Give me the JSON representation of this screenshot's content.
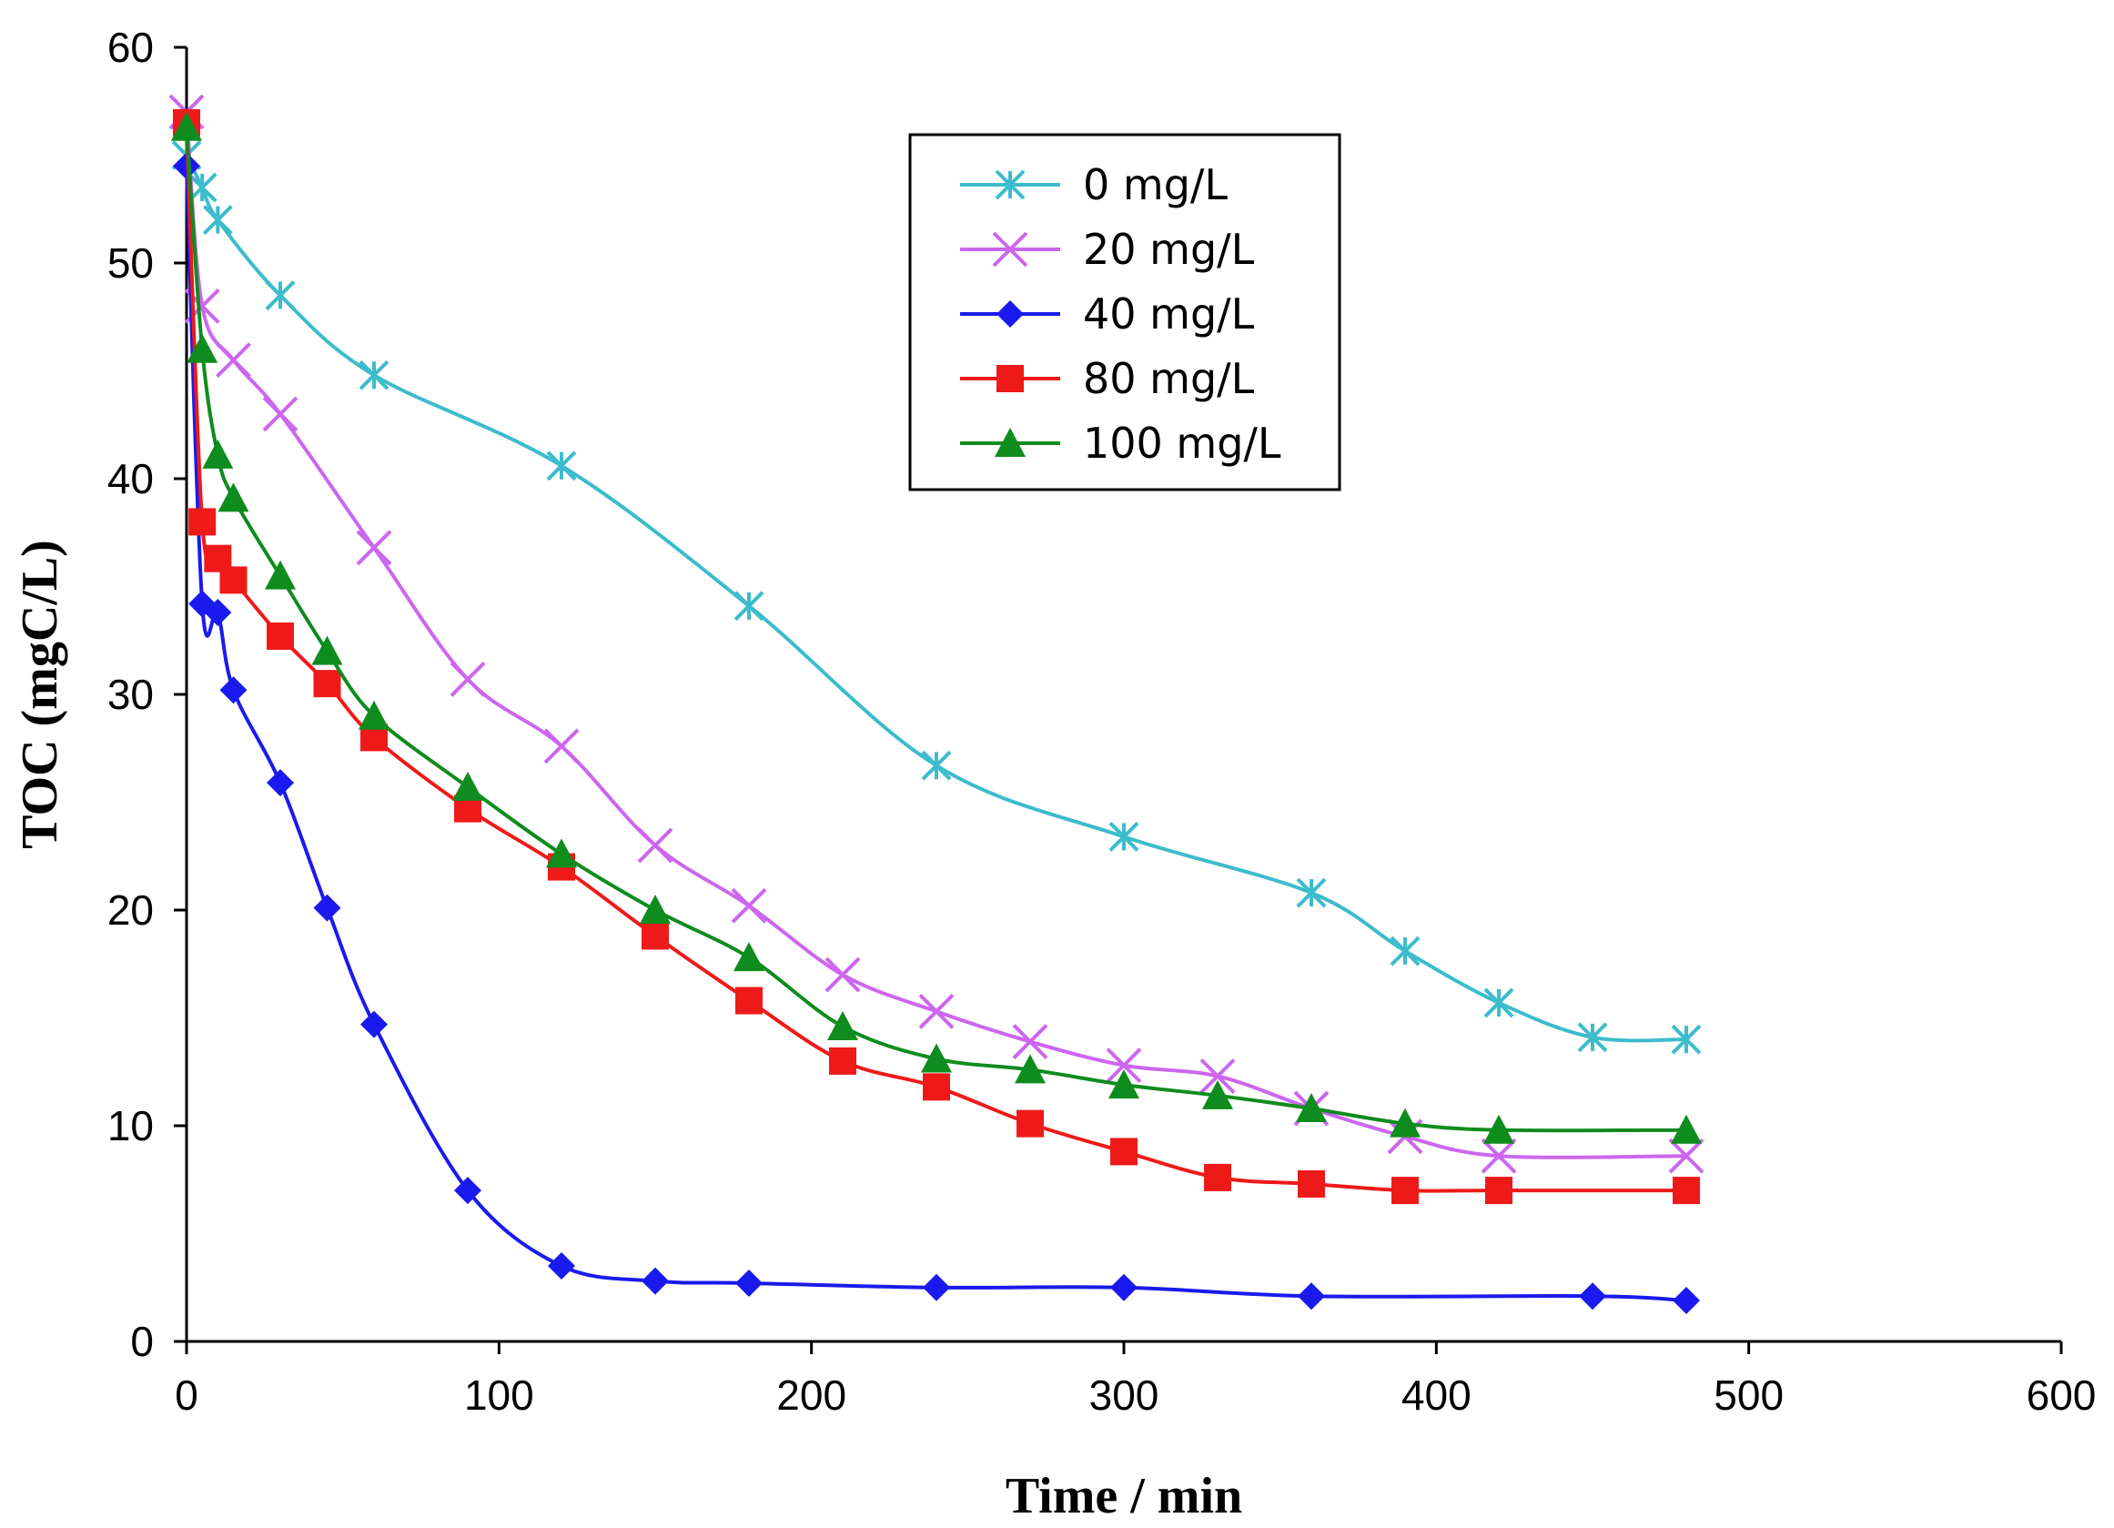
{
  "chart_data": {
    "type": "line",
    "title": "",
    "xlabel": "Time / min",
    "ylabel": "TOC (mgC/L)",
    "xlim": [
      0,
      600
    ],
    "ylim": [
      0,
      60
    ],
    "xticks": [
      0,
      100,
      200,
      300,
      400,
      500,
      600
    ],
    "yticks": [
      0,
      10,
      20,
      30,
      40,
      50,
      60
    ],
    "grid": false,
    "legend_position": "top-center",
    "series": [
      {
        "name": "0 mg/L",
        "color": "#3cbccc",
        "marker": "asterisk",
        "x": [
          0,
          5,
          10,
          30,
          60,
          120,
          180,
          240,
          300,
          360,
          390,
          420,
          450,
          480
        ],
        "y": [
          55,
          53.5,
          52,
          48.5,
          44.8,
          40.6,
          34.1,
          26.7,
          23.4,
          20.8,
          18.1,
          15.7,
          14.1,
          14.0
        ]
      },
      {
        "name": "20 mg/L",
        "color": "#cc66ee",
        "marker": "x",
        "x": [
          0,
          5,
          15,
          30,
          60,
          90,
          120,
          150,
          180,
          210,
          240,
          270,
          300,
          330,
          360,
          390,
          420,
          480
        ],
        "y": [
          57,
          48,
          45.5,
          43,
          36.8,
          30.7,
          27.6,
          23,
          20.2,
          17,
          15.3,
          13.9,
          12.8,
          12.3,
          10.8,
          9.5,
          8.6,
          8.6
        ]
      },
      {
        "name": "40 mg/L",
        "color": "#1a1aee",
        "marker": "diamond",
        "x": [
          0,
          5,
          10,
          15,
          30,
          45,
          60,
          90,
          120,
          150,
          180,
          240,
          300,
          360,
          450,
          480
        ],
        "y": [
          54.5,
          34.2,
          33.8,
          30.2,
          25.9,
          20.1,
          14.7,
          7.0,
          3.5,
          2.8,
          2.7,
          2.5,
          2.5,
          2.1,
          2.1,
          1.9
        ]
      },
      {
        "name": "80 mg/L",
        "color": "#ee1a1a",
        "marker": "square",
        "x": [
          0,
          5,
          10,
          15,
          30,
          45,
          60,
          90,
          120,
          150,
          180,
          210,
          240,
          270,
          300,
          330,
          360,
          390,
          420,
          480
        ],
        "y": [
          56.5,
          38,
          36.3,
          35.3,
          32.7,
          30.5,
          28,
          24.7,
          22,
          18.8,
          15.8,
          13,
          11.8,
          10.1,
          8.8,
          7.6,
          7.3,
          7.0,
          7.0,
          7.0
        ]
      },
      {
        "name": "100 mg/L",
        "color": "#0f8c1e",
        "marker": "triangle",
        "x": [
          0,
          5,
          10,
          15,
          30,
          45,
          60,
          90,
          120,
          150,
          180,
          210,
          240,
          270,
          300,
          330,
          360,
          390,
          420,
          480
        ],
        "y": [
          56.3,
          46,
          41.1,
          39.1,
          35.5,
          32,
          29,
          25.7,
          22.6,
          20,
          17.8,
          14.6,
          13.1,
          12.6,
          11.9,
          11.4,
          10.8,
          10.1,
          9.8,
          9.8
        ]
      }
    ]
  }
}
